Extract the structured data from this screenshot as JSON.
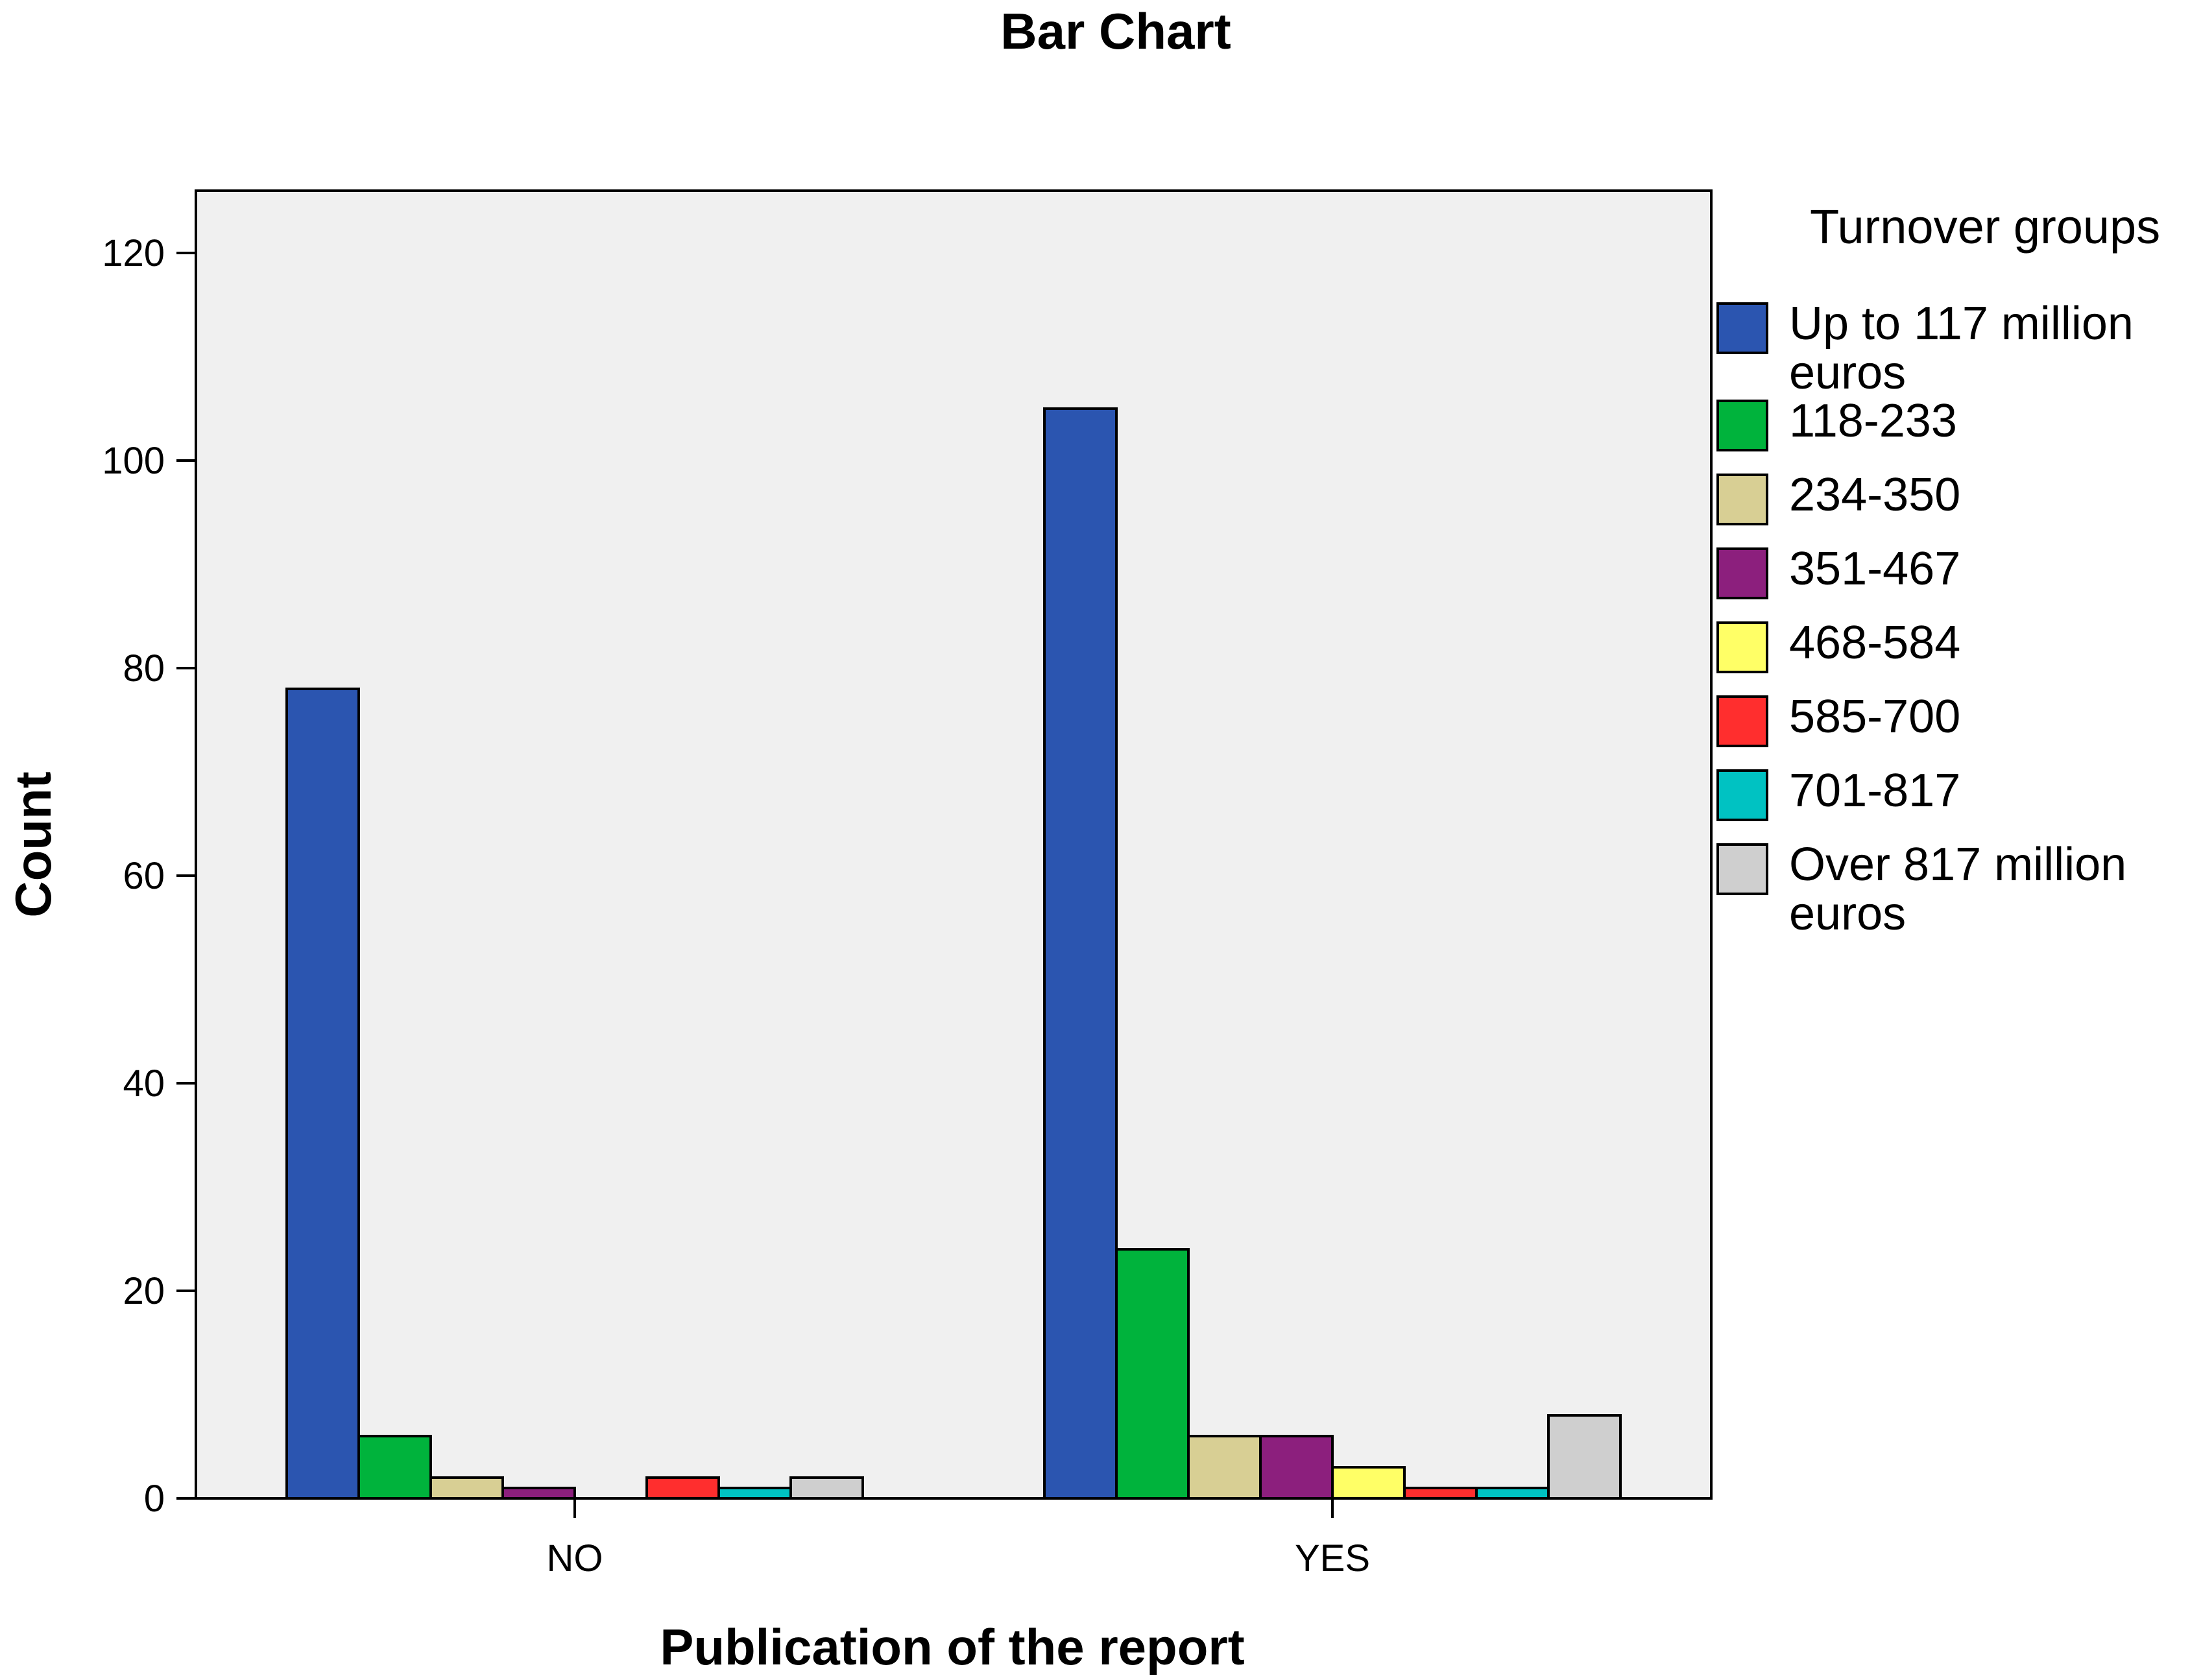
{
  "chart_data": {
    "type": "bar",
    "title": "Bar Chart",
    "xlabel": "Publication of the report",
    "ylabel": "Count",
    "categories": [
      "NO",
      "YES"
    ],
    "ylim": [
      0,
      126
    ],
    "yticks": [
      0,
      20,
      40,
      60,
      80,
      100,
      120
    ],
    "grid": false,
    "legend": {
      "title": "Turnover groups",
      "placement": "right"
    },
    "series": [
      {
        "name": "Up to 117 million euros",
        "color": "#2b55b0",
        "values": [
          78,
          105
        ]
      },
      {
        "name": "118-233",
        "color": "#00b33c",
        "values": [
          6,
          24
        ]
      },
      {
        "name": "234-350",
        "color": "#d8cf94",
        "values": [
          2,
          6
        ]
      },
      {
        "name": "351-467",
        "color": "#8c1f7d",
        "values": [
          1,
          6
        ]
      },
      {
        "name": "468-584",
        "color": "#ffff66",
        "values": [
          0,
          3
        ]
      },
      {
        "name": "585-700",
        "color": "#ff2e2e",
        "values": [
          2,
          1
        ]
      },
      {
        "name": "701-817",
        "color": "#00c2c2",
        "values": [
          1,
          1
        ]
      },
      {
        "name": "Over 817 million euros",
        "color": "#cfcfcf",
        "values": [
          2,
          8
        ]
      }
    ],
    "plot_background": "#f0f0f0"
  }
}
